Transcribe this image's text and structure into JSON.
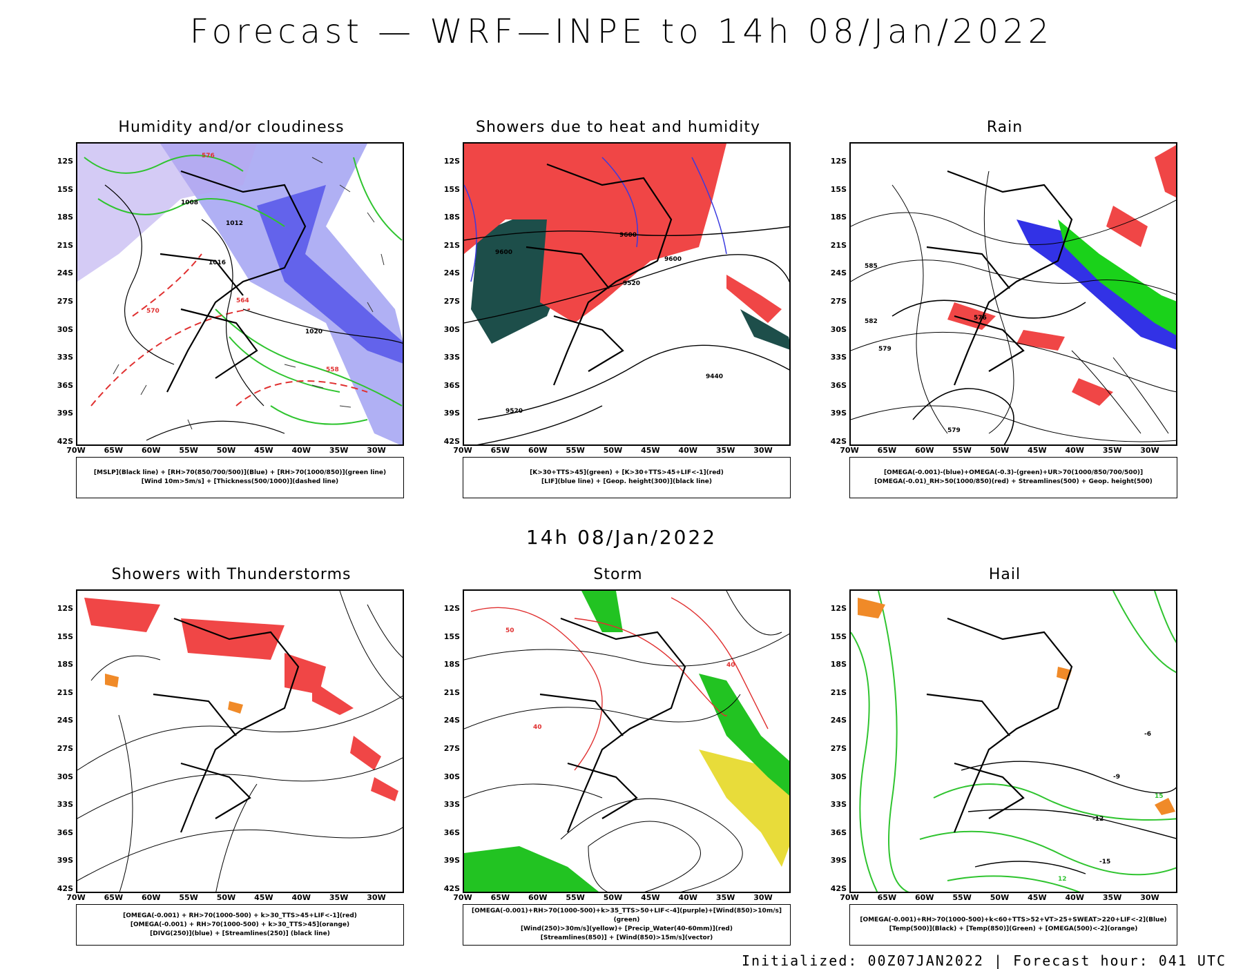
{
  "header": {
    "title": "Forecast — WRF—INPE to 14h 08/Jan/2022"
  },
  "mid_title": "14h 08/Jan/2022",
  "footer": "Initialized: 00Z07JAN2022 | Forecast hour: 041 UTC",
  "axes": {
    "lat_labels": [
      "12S",
      "15S",
      "18S",
      "21S",
      "24S",
      "27S",
      "30S",
      "33S",
      "36S",
      "39S",
      "42S"
    ],
    "lon_labels": [
      "70W",
      "65W",
      "60W",
      "55W",
      "50W",
      "45W",
      "40W",
      "35W",
      "30W"
    ]
  },
  "panels": [
    {
      "title": "Humidity and/or cloudiness",
      "legend": [
        "[MSLP](Black line) + [RH>70(850/700/500)](Blue) + [RH>70(1000/850)](green line)",
        "[Wind 10m>5m/s] + [Thickness(500/1000)](dashed line)"
      ],
      "labels": [
        "1008",
        "1012",
        "1016",
        "1020",
        "576",
        "570",
        "564",
        "558"
      ]
    },
    {
      "title": "Showers due to heat and humidity",
      "legend": [
        "[K>30+TTS>45](green) + [K>30+TTS>45+LIF<-1](red)",
        "[LIF](blue line) + [Geop. height(300)](black line)"
      ],
      "labels": [
        "9600",
        "9520",
        "9440"
      ]
    },
    {
      "title": "Rain",
      "legend": [
        "[OMEGA(-0.001)-(blue)+OMEGA(-0.3)-(green)+UR>70(1000/850/700/500)]",
        "[OMEGA(-0.01)_RH>50(1000/850)(red) + Streamlines(500) + Geop. height(500)"
      ],
      "labels": [
        "576",
        "579",
        "582",
        "585"
      ]
    },
    {
      "title": "Showers with Thunderstorms",
      "legend": [
        "[OMEGA(-0.001) + RH>70(1000-500) + k>30_TTS>45+LIF<-1](red)",
        "[OMEGA(-0.001) + RH>70(1000-500) + k>30_TTS>45](orange)",
        "[DIVG(250)](blue) + [Streamlines(250)] (black line)"
      ],
      "labels": []
    },
    {
      "title": "Storm",
      "legend": [
        "[OMEGA(-0.001)+RH>70(1000-500)+k>35_TTS>50+LIF<-4](purple)+[Wind(850)>10m/s](green)",
        "[Wind(250)>30m/s](yellow)+ [Precip_Water(40-60mm)](red)",
        "[Streamlines(850)] + [Wind(850)>15m/s](vector)"
      ],
      "labels": [
        "40",
        "50"
      ]
    },
    {
      "title": "Hail",
      "legend": [
        "[OMEGA(-0.001)+RH>70(1000-500)+k<60+TTS>52+VT>25+SWEAT>220+LIF<-2](Blue)",
        "[Temp(500)](Black) + [Temp(850)](Green) + [OMEGA(500)<-2](orange)"
      ],
      "labels": [
        "-9",
        "-12",
        "-15",
        "15",
        "12",
        "-6"
      ]
    }
  ]
}
